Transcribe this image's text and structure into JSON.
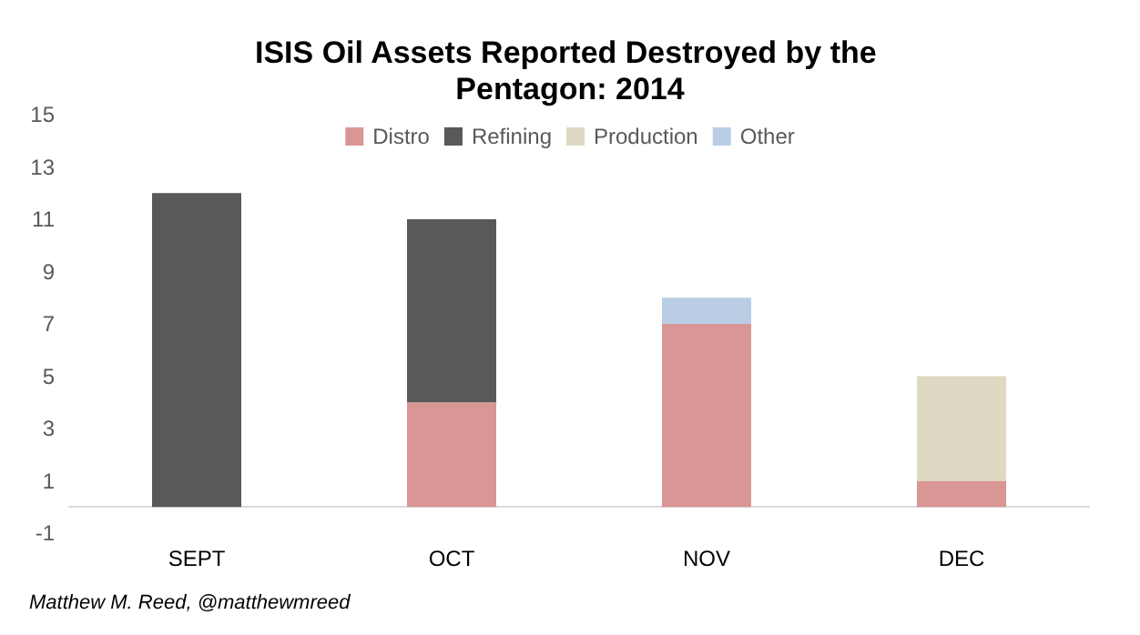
{
  "chart_data": {
    "type": "bar",
    "title": "ISIS Oil Assets Reported Destroyed by the Pentagon: 2014",
    "categories": [
      "SEPT",
      "OCT",
      "NOV",
      "DEC"
    ],
    "stacked": true,
    "series": [
      {
        "name": "Distro",
        "color": "#d99694",
        "values": [
          0,
          4,
          7,
          1
        ]
      },
      {
        "name": "Refining",
        "color": "#595959",
        "values": [
          12,
          7,
          0,
          0
        ]
      },
      {
        "name": "Production",
        "color": "#ddd9c3",
        "values": [
          0,
          0,
          0,
          4
        ]
      },
      {
        "name": "Other",
        "color": "#b9cde5",
        "values": [
          0,
          0,
          1,
          0
        ]
      }
    ],
    "ylim": [
      -1,
      15
    ],
    "yticks": [
      -1,
      1,
      3,
      5,
      7,
      9,
      11,
      13,
      15
    ],
    "grid": false,
    "legend": "top",
    "annotations": [
      "Matthew M. Reed, @matthewmreed"
    ]
  }
}
